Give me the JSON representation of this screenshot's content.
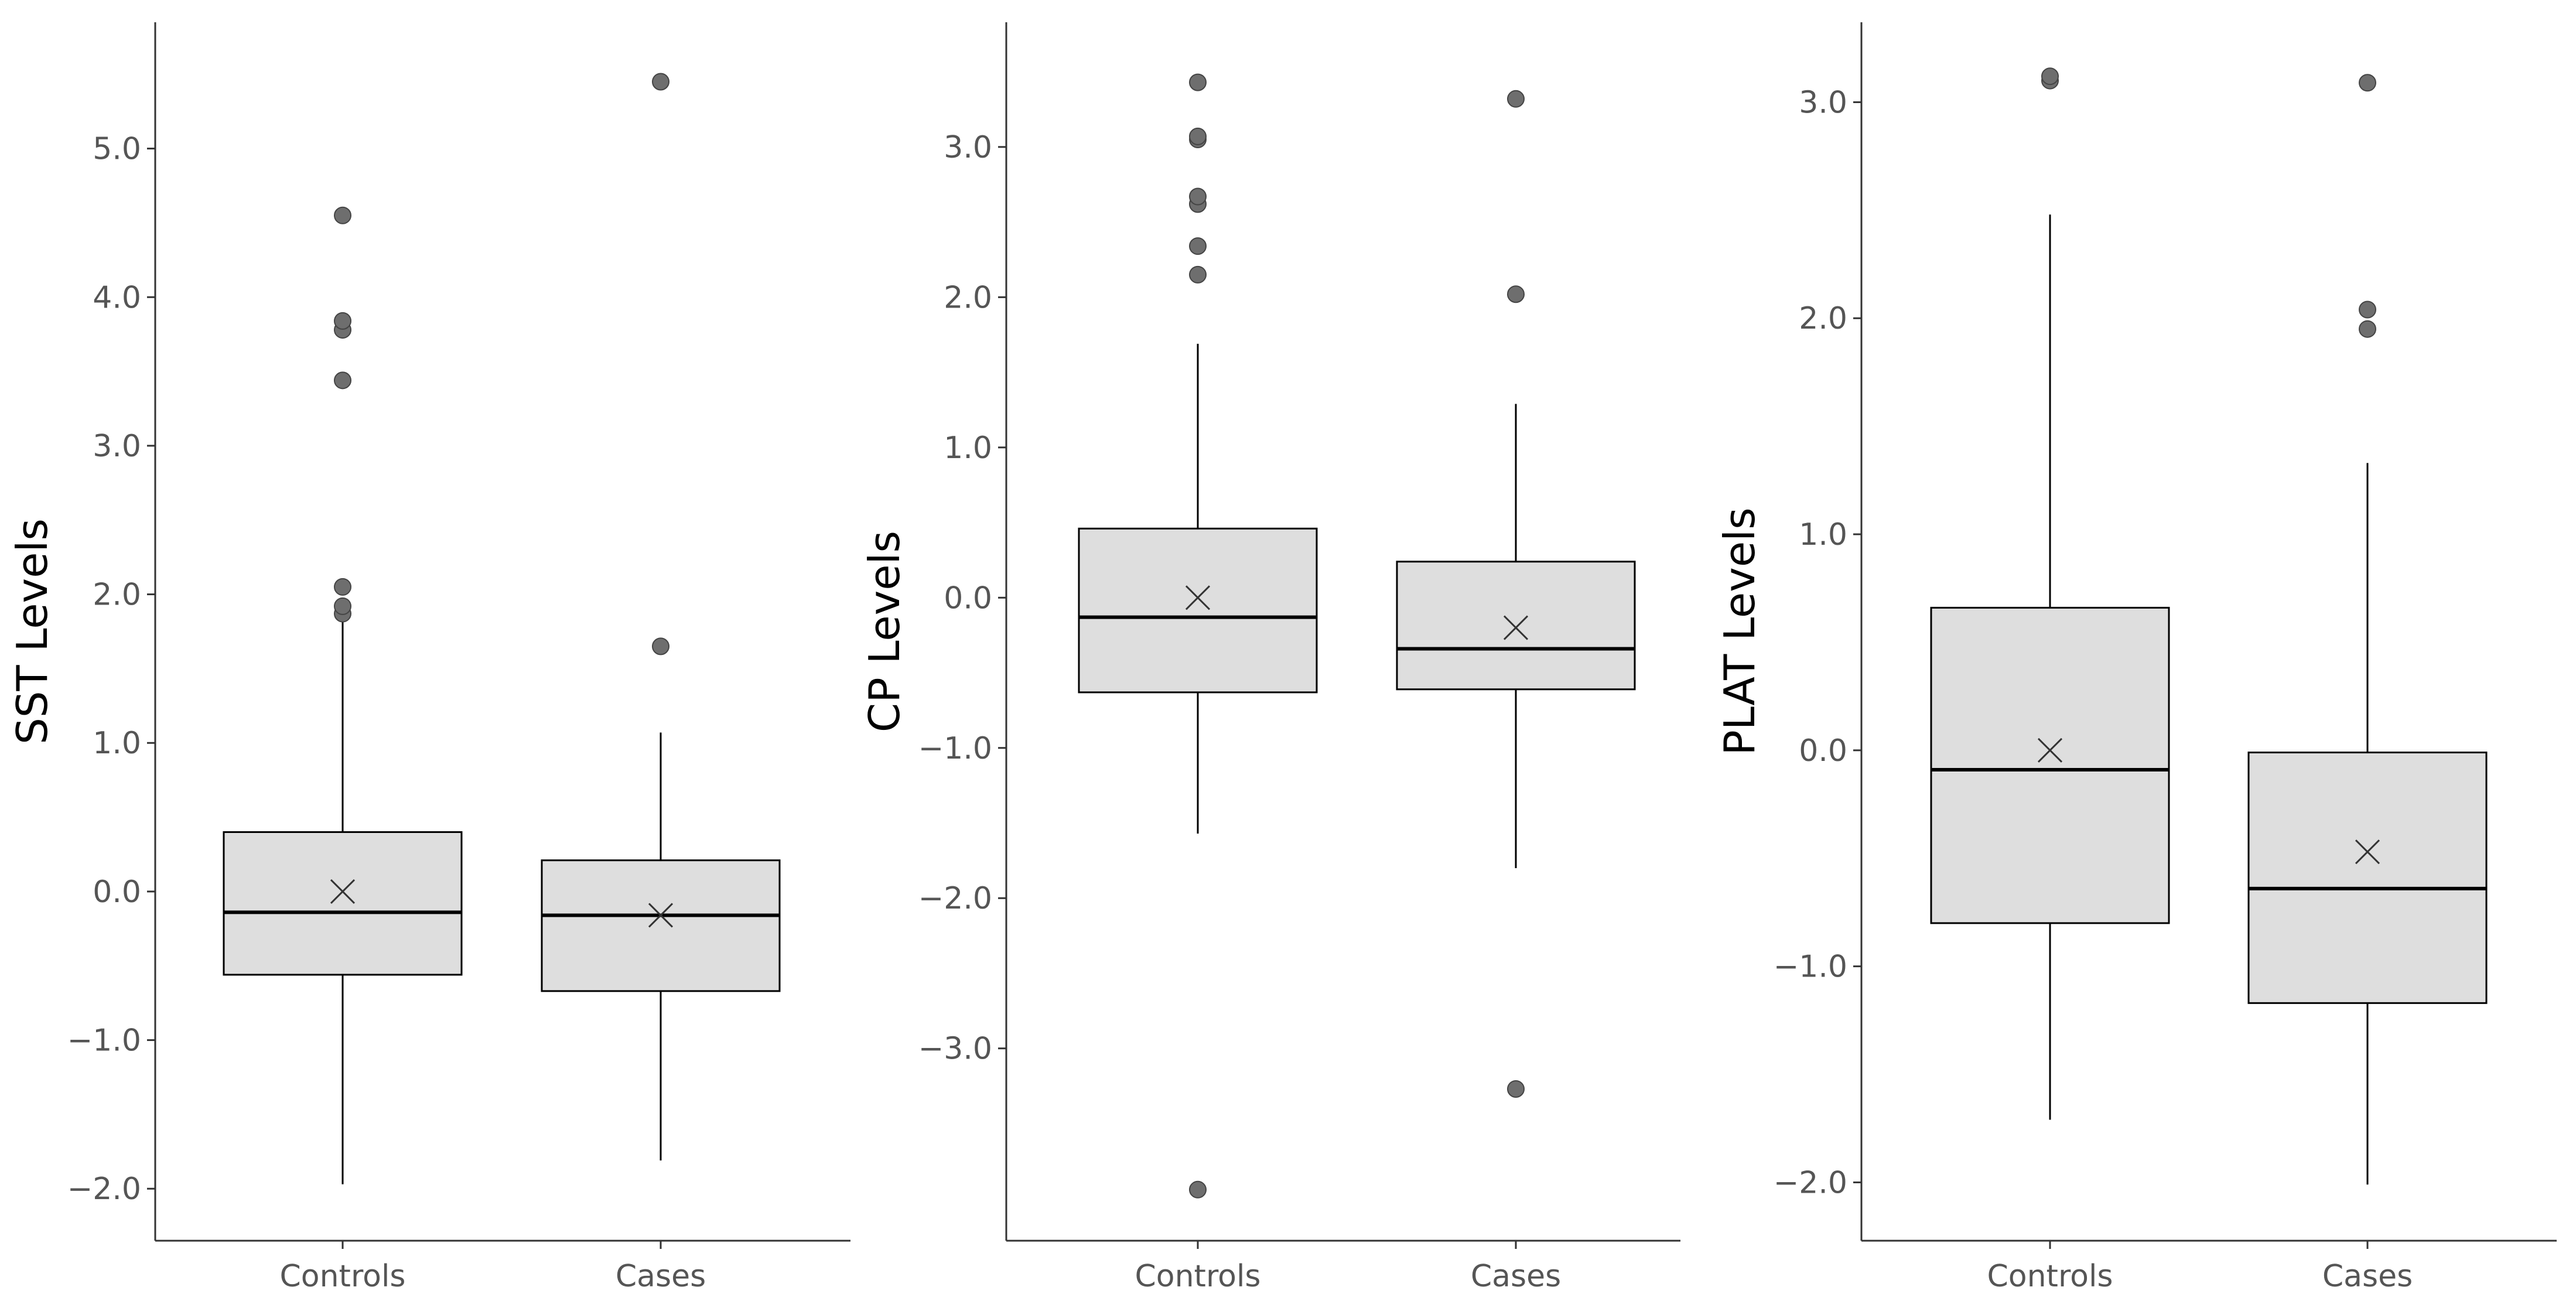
{
  "colors": {
    "box_fill": "#dedede",
    "box_stroke": "#000000",
    "outlier": "#6e6e6e",
    "tick_text": "#555555",
    "axis_line": "#333333"
  },
  "chart_data": [
    {
      "type": "box",
      "ylabel": "SST Levels",
      "xlabel": "",
      "categories": [
        "Controls",
        "Cases"
      ],
      "y_ticks": [
        -2.0,
        -1.0,
        0.0,
        1.0,
        2.0,
        3.0,
        4.0,
        5.0
      ],
      "y_tick_labels": [
        "−2.0",
        "−1.0",
        "0.0",
        "1.0",
        "2.0",
        "3.0",
        "4.0",
        "5.0"
      ],
      "ylim": [
        -2.35,
        5.85
      ],
      "grid": false,
      "boxes": [
        {
          "category": "Controls",
          "q1": -0.56,
          "median": -0.14,
          "q3": 0.4,
          "whisker_low": -1.97,
          "whisker_high": 1.9,
          "mean": 0.0,
          "outliers": [
            1.87,
            1.92,
            2.05,
            3.44,
            3.78,
            3.84,
            4.55
          ]
        },
        {
          "category": "Cases",
          "q1": -0.67,
          "median": -0.16,
          "q3": 0.21,
          "whisker_low": -1.81,
          "whisker_high": 1.07,
          "mean": -0.16,
          "outliers": [
            1.65,
            5.45
          ]
        }
      ]
    },
    {
      "type": "box",
      "ylabel": "CP Levels",
      "xlabel": "",
      "categories": [
        "Controls",
        "Cases"
      ],
      "y_ticks": [
        -3.0,
        -2.0,
        -1.0,
        0.0,
        1.0,
        2.0,
        3.0
      ],
      "y_tick_labels": [
        "−3.0",
        "−2.0",
        "−1.0",
        "0.0",
        "1.0",
        "2.0",
        "3.0"
      ],
      "ylim": [
        -4.28,
        3.83
      ],
      "grid": false,
      "boxes": [
        {
          "category": "Controls",
          "q1": -0.63,
          "median": -0.13,
          "q3": 0.46,
          "whisker_low": -1.57,
          "whisker_high": 1.69,
          "mean": 0.0,
          "outliers": [
            2.15,
            2.34,
            2.62,
            2.67,
            3.05,
            3.07,
            3.43,
            -3.94
          ]
        },
        {
          "category": "Cases",
          "q1": -0.61,
          "median": -0.34,
          "q3": 0.24,
          "whisker_low": -1.8,
          "whisker_high": 1.29,
          "mean": -0.2,
          "outliers": [
            2.02,
            3.32,
            -3.27
          ]
        }
      ]
    },
    {
      "type": "box",
      "ylabel": "PLAT Levels",
      "xlabel": "",
      "categories": [
        "Controls",
        "Cases"
      ],
      "y_ticks": [
        -2.0,
        -1.0,
        0.0,
        1.0,
        2.0,
        3.0
      ],
      "y_tick_labels": [
        "−2.0",
        "−1.0",
        "0.0",
        "1.0",
        "2.0",
        "3.0"
      ],
      "ylim": [
        -2.27,
        3.37
      ],
      "grid": false,
      "boxes": [
        {
          "category": "Controls",
          "q1": -0.8,
          "median": -0.09,
          "q3": 0.66,
          "whisker_low": -1.71,
          "whisker_high": 2.48,
          "mean": 0.0,
          "outliers": [
            3.1,
            3.12
          ]
        },
        {
          "category": "Cases",
          "q1": -1.17,
          "median": -0.64,
          "q3": -0.01,
          "whisker_low": -2.01,
          "whisker_high": 1.33,
          "mean": -0.47,
          "outliers": [
            1.95,
            2.04,
            3.09
          ]
        }
      ]
    }
  ]
}
